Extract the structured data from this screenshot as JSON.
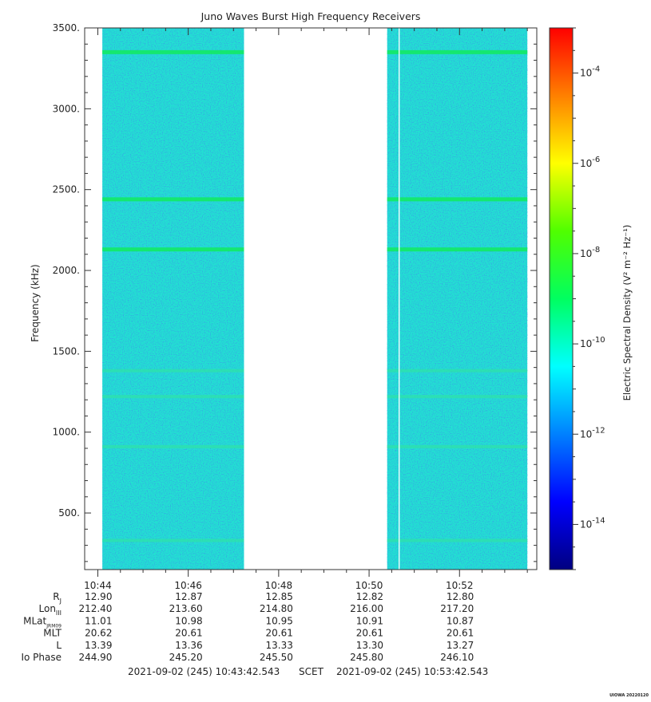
{
  "chart_data": {
    "type": "heatmap",
    "title": "Juno Waves Burst High Frequency Receivers",
    "ylabel": "Frequency (kHz)",
    "ylim": [
      150,
      3500
    ],
    "yticks": [
      "500.",
      "1000.",
      "1500.",
      "2000.",
      "2500.",
      "3000.",
      "3500."
    ],
    "ytick_values": [
      500,
      1000,
      1500,
      2000,
      2500,
      3000,
      3500
    ],
    "xlim": [
      "10:43:42.543",
      "10:53:42.543"
    ],
    "xticks": [
      "10:44",
      "10:46",
      "10:48",
      "10:50",
      "10:52"
    ],
    "data_segments": [
      {
        "start": "10:44:06",
        "end": "10:47:14"
      },
      {
        "start": "10:50:24",
        "end": "10:53:30"
      }
    ],
    "data_gap": {
      "start": "10:47:14",
      "end": "10:50:24"
    },
    "narrowband_lines_khz": [
      3350,
      2440,
      2130,
      1380,
      1220,
      910,
      330
    ],
    "background_level": "10^-11.6",
    "colorbar": {
      "label": "Electric Spectral Density (V² m⁻² Hz⁻¹)",
      "scale": "log",
      "range": [
        "10^-15",
        "10^-3"
      ],
      "ticks": [
        {
          "base": "10",
          "exp": "-4"
        },
        {
          "base": "10",
          "exp": "-6"
        },
        {
          "base": "10",
          "exp": "-8"
        },
        {
          "base": "10",
          "exp": "-10"
        },
        {
          "base": "10",
          "exp": "-12"
        },
        {
          "base": "10",
          "exp": "-14"
        }
      ],
      "tick_values": [
        -4,
        -6,
        -8,
        -10,
        -12,
        -14
      ]
    },
    "ephemeris": {
      "rows": [
        {
          "label": "R",
          "sub": "J",
          "values": [
            "12.90",
            "12.87",
            "12.85",
            "12.82",
            "12.80"
          ]
        },
        {
          "label": "Lon",
          "sub": "III",
          "values": [
            "212.40",
            "213.60",
            "214.80",
            "216.00",
            "217.20"
          ]
        },
        {
          "label": "MLat",
          "sub": "JRM09",
          "values": [
            "11.01",
            "10.98",
            "10.95",
            "10.91",
            "10.87"
          ]
        },
        {
          "label": "MLT",
          "sub": "",
          "values": [
            "20.62",
            "20.61",
            "20.61",
            "20.61",
            "20.61"
          ]
        },
        {
          "label": "L",
          "sub": "",
          "values": [
            "13.39",
            "13.36",
            "13.33",
            "13.30",
            "13.27"
          ]
        },
        {
          "label": "Io Phase",
          "sub": "",
          "values": [
            "244.90",
            "245.20",
            "245.50",
            "245.80",
            "246.10"
          ]
        }
      ]
    },
    "time_range": {
      "start": "2021-09-02 (245) 10:43:42.543",
      "label": "SCET",
      "end": "2021-09-02 (245) 10:53:42.543"
    },
    "footer": "UIOWA 20220120"
  }
}
